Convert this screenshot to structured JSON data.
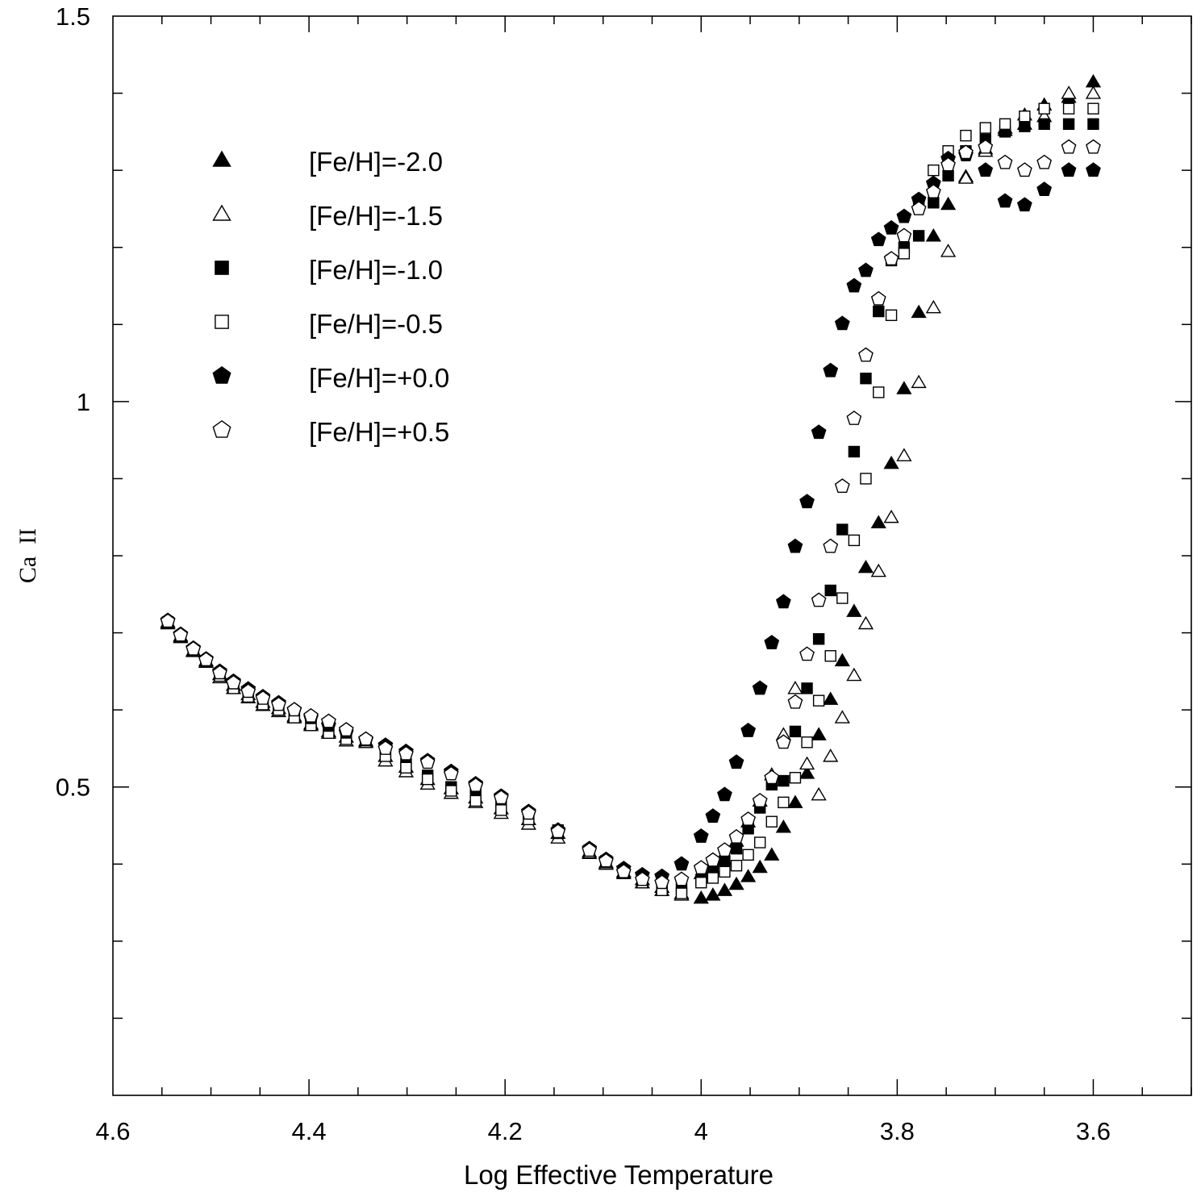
{
  "chart_data": {
    "type": "scatter",
    "title": "",
    "xlabel": "Log Effective Temperature",
    "ylabel": "Ca  II",
    "xlim": [
      4.6,
      3.5
    ],
    "ylim": [
      0.1,
      1.5
    ],
    "x_reversed": true,
    "xticks": [
      4.6,
      4.4,
      4.2,
      4,
      3.8,
      3.6
    ],
    "xtick_labels": [
      "4.6",
      "4.4",
      "4.2",
      "4",
      "3.8",
      "3.6"
    ],
    "yticks": [
      0.5,
      1,
      1.5
    ],
    "ytick_labels": [
      "0.5",
      "1",
      "1.5"
    ],
    "grid": false,
    "legend_position": "top-left",
    "series": [
      {
        "name": "[Fe/H]=-2.0",
        "marker": "triangle",
        "filled": true,
        "x": [
          4.544,
          4.531,
          4.518,
          4.505,
          4.491,
          4.477,
          4.462,
          4.447,
          4.431,
          4.415,
          4.398,
          4.38,
          4.362,
          4.342,
          4.322,
          4.301,
          4.279,
          4.255,
          4.23,
          4.204,
          4.176,
          4.146,
          4.114,
          4.097,
          4.079,
          4.06,
          4.04,
          4.02,
          4,
          3.988,
          3.976,
          3.964,
          3.952,
          3.94,
          3.928,
          3.916,
          3.904,
          3.892,
          3.88,
          3.868,
          3.856,
          3.844,
          3.832,
          3.819,
          3.806,
          3.793,
          3.778,
          3.763,
          3.748,
          3.73,
          3.71,
          3.69,
          3.67,
          3.65,
          3.625,
          3.6
        ],
        "y": [
          0.714,
          0.696,
          0.677,
          0.664,
          0.646,
          0.632,
          0.62,
          0.61,
          0.602,
          0.592,
          0.582,
          0.572,
          0.565,
          0.56,
          0.54,
          0.526,
          0.51,
          0.498,
          0.486,
          0.472,
          0.458,
          0.44,
          0.416,
          0.402,
          0.39,
          0.38,
          0.37,
          0.362,
          0.356,
          0.36,
          0.366,
          0.374,
          0.384,
          0.396,
          0.412,
          0.448,
          0.48,
          0.518,
          0.568,
          0.614,
          0.664,
          0.728,
          0.785,
          0.843,
          0.92,
          1.017,
          1.116,
          1.215,
          1.256,
          1.292,
          1.328,
          1.352,
          1.372,
          1.385,
          1.395,
          1.415
        ]
      },
      {
        "name": "[Fe/H]=-1.5",
        "marker": "triangle",
        "filled": false,
        "x": [
          4.544,
          4.531,
          4.518,
          4.505,
          4.491,
          4.477,
          4.462,
          4.447,
          4.431,
          4.415,
          4.398,
          4.38,
          4.362,
          4.342,
          4.322,
          4.301,
          4.279,
          4.255,
          4.23,
          4.204,
          4.176,
          4.146,
          4.114,
          4.097,
          4.079,
          4.06,
          4.04,
          4.02,
          4,
          3.988,
          3.976,
          3.964,
          3.952,
          3.94,
          3.928,
          3.916,
          3.904,
          3.892,
          3.88,
          3.868,
          3.856,
          3.844,
          3.832,
          3.819,
          3.806,
          3.793,
          3.778,
          3.763,
          3.748,
          3.73,
          3.71,
          3.69,
          3.67,
          3.65,
          3.625,
          3.6
        ],
        "y": [
          0.712,
          0.694,
          0.676,
          0.662,
          0.642,
          0.628,
          0.616,
          0.606,
          0.598,
          0.59,
          0.58,
          0.57,
          0.56,
          0.558,
          0.534,
          0.52,
          0.504,
          0.492,
          0.48,
          0.466,
          0.452,
          0.434,
          0.414,
          0.4,
          0.388,
          0.376,
          0.366,
          0.36,
          0.388,
          0.394,
          0.406,
          0.43,
          0.455,
          0.482,
          0.516,
          0.568,
          0.628,
          0.53,
          0.49,
          0.54,
          0.59,
          0.645,
          0.712,
          0.78,
          0.85,
          0.93,
          1.025,
          1.122,
          1.195,
          1.29,
          1.325,
          1.355,
          1.36,
          1.37,
          1.4,
          1.4
        ]
      },
      {
        "name": "[Fe/H]=-1.0",
        "marker": "square",
        "filled": true,
        "x": [
          4.544,
          4.531,
          4.518,
          4.505,
          4.491,
          4.477,
          4.462,
          4.447,
          4.431,
          4.415,
          4.398,
          4.38,
          4.362,
          4.342,
          4.322,
          4.301,
          4.279,
          4.255,
          4.23,
          4.204,
          4.176,
          4.146,
          4.114,
          4.097,
          4.079,
          4.06,
          4.04,
          4.02,
          4,
          3.988,
          3.976,
          3.964,
          3.952,
          3.94,
          3.928,
          3.916,
          3.904,
          3.892,
          3.88,
          3.868,
          3.856,
          3.844,
          3.832,
          3.819,
          3.806,
          3.793,
          3.778,
          3.763,
          3.748,
          3.73,
          3.71,
          3.69,
          3.67,
          3.65,
          3.625,
          3.6
        ],
        "y": [
          0.714,
          0.695,
          0.677,
          0.663,
          0.646,
          0.63,
          0.618,
          0.608,
          0.6,
          0.592,
          0.582,
          0.572,
          0.564,
          0.56,
          0.545,
          0.53,
          0.515,
          0.5,
          0.49,
          0.476,
          0.462,
          0.444,
          0.418,
          0.404,
          0.39,
          0.378,
          0.37,
          0.368,
          0.38,
          0.392,
          0.404,
          0.42,
          0.446,
          0.473,
          0.503,
          0.508,
          0.572,
          0.628,
          0.692,
          0.755,
          0.834,
          0.935,
          1.03,
          1.117,
          1.183,
          1.2,
          1.215,
          1.258,
          1.293,
          1.325,
          1.34,
          1.35,
          1.357,
          1.36,
          1.36,
          1.36
        ]
      },
      {
        "name": "[Fe/H]=-0.5",
        "marker": "square",
        "filled": false,
        "x": [
          4.544,
          4.531,
          4.518,
          4.505,
          4.491,
          4.477,
          4.462,
          4.447,
          4.431,
          4.415,
          4.398,
          4.38,
          4.362,
          4.342,
          4.322,
          4.301,
          4.279,
          4.255,
          4.23,
          4.204,
          4.176,
          4.146,
          4.114,
          4.097,
          4.079,
          4.06,
          4.04,
          4.02,
          4,
          3.988,
          3.976,
          3.964,
          3.952,
          3.94,
          3.928,
          3.916,
          3.904,
          3.892,
          3.88,
          3.868,
          3.856,
          3.844,
          3.832,
          3.819,
          3.806,
          3.793,
          3.778,
          3.763,
          3.748,
          3.73,
          3.71,
          3.69,
          3.67,
          3.65,
          3.625,
          3.6
        ],
        "y": [
          0.713,
          0.695,
          0.677,
          0.663,
          0.644,
          0.628,
          0.617,
          0.607,
          0.6,
          0.59,
          0.58,
          0.57,
          0.562,
          0.558,
          0.54,
          0.525,
          0.51,
          0.495,
          0.482,
          0.47,
          0.458,
          0.44,
          0.415,
          0.402,
          0.388,
          0.376,
          0.366,
          0.362,
          0.376,
          0.382,
          0.39,
          0.398,
          0.412,
          0.428,
          0.455,
          0.48,
          0.512,
          0.558,
          0.612,
          0.67,
          0.745,
          0.82,
          0.9,
          1.012,
          1.112,
          1.192,
          1.255,
          1.3,
          1.325,
          1.345,
          1.355,
          1.36,
          1.37,
          1.38,
          1.38,
          1.38
        ]
      },
      {
        "name": "[Fe/H]=+0.0",
        "marker": "pentagon",
        "filled": true,
        "x": [
          4.544,
          4.531,
          4.518,
          4.505,
          4.491,
          4.477,
          4.462,
          4.447,
          4.431,
          4.415,
          4.398,
          4.38,
          4.362,
          4.342,
          4.322,
          4.301,
          4.279,
          4.255,
          4.23,
          4.204,
          4.176,
          4.146,
          4.114,
          4.097,
          4.079,
          4.06,
          4.04,
          4.02,
          4,
          3.988,
          3.976,
          3.964,
          3.952,
          3.94,
          3.928,
          3.916,
          3.904,
          3.892,
          3.88,
          3.868,
          3.856,
          3.844,
          3.832,
          3.819,
          3.806,
          3.793,
          3.778,
          3.763,
          3.748,
          3.73,
          3.71,
          3.69,
          3.67,
          3.65,
          3.625,
          3.6
        ],
        "y": [
          0.716,
          0.698,
          0.68,
          0.666,
          0.65,
          0.637,
          0.627,
          0.617,
          0.609,
          0.6,
          0.59,
          0.58,
          0.571,
          0.561,
          0.554,
          0.546,
          0.534,
          0.52,
          0.504,
          0.488,
          0.468,
          0.444,
          0.42,
          0.406,
          0.394,
          0.386,
          0.384,
          0.4,
          0.436,
          0.462,
          0.49,
          0.532,
          0.573,
          0.628,
          0.687,
          0.74,
          0.812,
          0.87,
          0.96,
          1.04,
          1.101,
          1.15,
          1.17,
          1.21,
          1.225,
          1.24,
          1.262,
          1.283,
          1.315,
          1.32,
          1.3,
          1.26,
          1.255,
          1.275,
          1.3,
          1.3
        ]
      },
      {
        "name": "[Fe/H]=+0.5",
        "marker": "pentagon",
        "filled": false,
        "x": [
          4.544,
          4.531,
          4.518,
          4.505,
          4.491,
          4.477,
          4.462,
          4.447,
          4.431,
          4.415,
          4.398,
          4.38,
          4.362,
          4.342,
          4.322,
          4.301,
          4.279,
          4.255,
          4.23,
          4.204,
          4.176,
          4.146,
          4.114,
          4.097,
          4.079,
          4.06,
          4.04,
          4.02,
          4,
          3.988,
          3.976,
          3.964,
          3.952,
          3.94,
          3.928,
          3.916,
          3.904,
          3.892,
          3.88,
          3.868,
          3.856,
          3.844,
          3.832,
          3.819,
          3.806,
          3.793,
          3.778,
          3.763,
          3.748,
          3.73,
          3.71,
          3.69,
          3.67,
          3.65,
          3.625,
          3.6
        ],
        "y": [
          0.715,
          0.697,
          0.679,
          0.665,
          0.648,
          0.635,
          0.624,
          0.615,
          0.607,
          0.6,
          0.592,
          0.585,
          0.574,
          0.562,
          0.55,
          0.543,
          0.532,
          0.517,
          0.502,
          0.486,
          0.466,
          0.442,
          0.418,
          0.404,
          0.39,
          0.38,
          0.376,
          0.38,
          0.395,
          0.405,
          0.418,
          0.435,
          0.458,
          0.482,
          0.512,
          0.558,
          0.61,
          0.672,
          0.742,
          0.812,
          0.89,
          0.978,
          1.06,
          1.133,
          1.185,
          1.215,
          1.25,
          1.272,
          1.307,
          1.323,
          1.33,
          1.31,
          1.3,
          1.31,
          1.33,
          1.33
        ]
      }
    ]
  }
}
